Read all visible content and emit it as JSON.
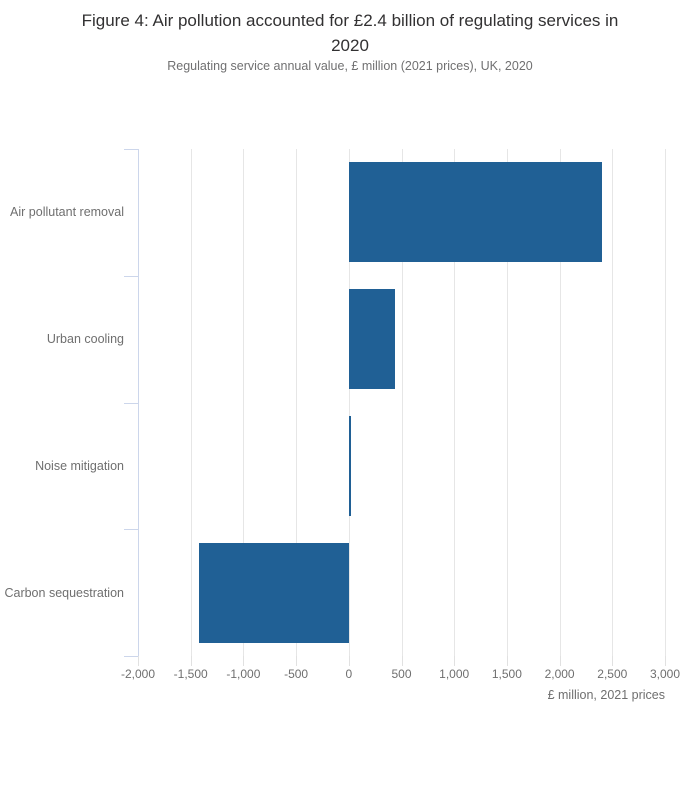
{
  "header": {
    "title_line1": "Figure 4: Air pollution accounted for £2.4 billion of regulating services in",
    "title_line2": "2020",
    "subtitle": "Regulating service annual value, £ million (2021 prices), UK, 2020"
  },
  "chart_data": {
    "type": "bar",
    "orientation": "horizontal",
    "title": "Figure 4: Air pollution accounted for £2.4 billion of regulating services in 2020",
    "subtitle": "Regulating service annual value, £ million (2021 prices), UK, 2020",
    "categories": [
      "Air pollutant removal",
      "Urban cooling",
      "Noise mitigation",
      "Carbon sequestration"
    ],
    "values": [
      2400,
      435,
      15,
      -1420
    ],
    "xlabel": "£ million, 2021 prices",
    "ylabel": "",
    "xlim": [
      -2000,
      3000
    ],
    "xticks": [
      -2000,
      -1500,
      -1000,
      -500,
      0,
      500,
      1000,
      1500,
      2000,
      2500,
      3000
    ],
    "xtick_labels": [
      "-2,000",
      "-1,500",
      "-1,000",
      "-500",
      "0",
      "500",
      "1,000",
      "1,500",
      "2,000",
      "2,500",
      "3,000"
    ],
    "grid": true,
    "legend": false,
    "baseline": 0,
    "colors": {
      "bar": "#206095",
      "gridline": "#e6e6e6",
      "category_axis": "#ccd6eb",
      "value_tick": "#e1e1e1",
      "tick_label": "#6f6f6f",
      "title": "#323132",
      "subtitle": "#707071"
    }
  }
}
